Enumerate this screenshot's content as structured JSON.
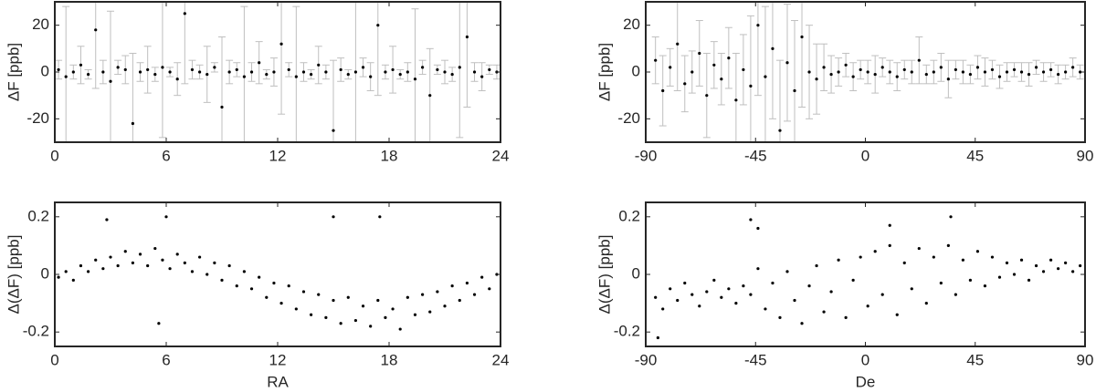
{
  "chart_data": [
    {
      "type": "scatter",
      "ylabel": "ΔF [ppb]",
      "color": "#000000",
      "error_color": "#bfbfbf",
      "xlim": [
        0,
        24
      ],
      "xticks": [
        0,
        6,
        12,
        18,
        24
      ],
      "ylim": [
        -30,
        30
      ],
      "yticks": [
        -20,
        0,
        20
      ],
      "x": [
        0.2,
        0.6,
        1.0,
        1.4,
        1.8,
        2.2,
        2.6,
        3.0,
        3.4,
        3.8,
        4.2,
        4.6,
        5.0,
        5.4,
        5.8,
        6.2,
        6.6,
        7.0,
        7.4,
        7.8,
        8.2,
        8.6,
        9.0,
        9.4,
        9.8,
        10.2,
        10.6,
        11.0,
        11.4,
        11.8,
        12.2,
        12.6,
        13.0,
        13.4,
        13.8,
        14.2,
        14.6,
        15.0,
        15.4,
        15.8,
        16.2,
        16.6,
        17.0,
        17.4,
        17.8,
        18.2,
        18.6,
        19.0,
        19.4,
        19.8,
        20.2,
        20.6,
        21.0,
        21.4,
        21.8,
        22.2,
        22.6,
        23.0,
        23.4,
        23.8
      ],
      "values": [
        1,
        -2,
        0,
        3,
        -1,
        18,
        0,
        -4,
        2,
        1,
        -22,
        0,
        1,
        -1,
        2,
        0,
        -3,
        25,
        1,
        0,
        -1,
        2,
        -15,
        0,
        1,
        -2,
        0,
        4,
        -1,
        0,
        12,
        1,
        -2,
        0,
        -1,
        3,
        0,
        -25,
        1,
        -1,
        0,
        2,
        -2,
        20,
        0,
        1,
        -1,
        0,
        -3,
        2,
        -10,
        1,
        0,
        -1,
        2,
        15,
        0,
        -2,
        1,
        0
      ],
      "errors": [
        4,
        30,
        3,
        8,
        2,
        25,
        5,
        30,
        3,
        6,
        30,
        4,
        10,
        3,
        30,
        2,
        7,
        30,
        4,
        3,
        12,
        2,
        30,
        5,
        3,
        30,
        4,
        9,
        2,
        6,
        30,
        3,
        30,
        4,
        2,
        8,
        3,
        30,
        5,
        2,
        30,
        4,
        6,
        30,
        3,
        10,
        2,
        4,
        30,
        3,
        20,
        2,
        5,
        3,
        30,
        30,
        4,
        6,
        2,
        3
      ]
    },
    {
      "type": "scatter",
      "xlabel": "RA",
      "ylabel": "Δ(ΔF) [ppb]",
      "color": "#000000",
      "xlim": [
        0,
        24
      ],
      "xticks": [
        0,
        6,
        12,
        18,
        24
      ],
      "ylim": [
        -0.25,
        0.25
      ],
      "yticks": [
        -0.2,
        0,
        0.2
      ],
      "x": [
        0.2,
        0.6,
        1.0,
        1.4,
        1.8,
        2.2,
        2.6,
        3.0,
        3.4,
        3.8,
        4.2,
        4.6,
        5.0,
        5.4,
        5.8,
        6.2,
        6.6,
        7.0,
        7.4,
        7.8,
        8.2,
        8.6,
        9.0,
        9.4,
        9.8,
        10.2,
        10.6,
        11.0,
        11.4,
        11.8,
        12.2,
        12.6,
        13.0,
        13.4,
        13.8,
        14.2,
        14.6,
        15.0,
        15.4,
        15.8,
        16.2,
        16.6,
        17.0,
        17.4,
        17.8,
        18.2,
        18.6,
        19.0,
        19.4,
        19.8,
        20.2,
        20.6,
        21.0,
        21.4,
        21.8,
        22.2,
        22.6,
        23.0,
        23.4,
        23.8,
        2.8,
        6.0,
        15.0,
        17.5,
        5.6
      ],
      "values": [
        -0.01,
        0.01,
        -0.02,
        0.03,
        0.01,
        0.05,
        0.02,
        0.06,
        0.03,
        0.08,
        0.04,
        0.07,
        0.03,
        0.09,
        0.05,
        0.02,
        0.07,
        0.04,
        0.01,
        0.06,
        0.0,
        0.04,
        -0.02,
        0.03,
        -0.04,
        0.01,
        -0.05,
        -0.01,
        -0.08,
        -0.03,
        -0.1,
        -0.04,
        -0.12,
        -0.06,
        -0.14,
        -0.07,
        -0.15,
        -0.09,
        -0.17,
        -0.08,
        -0.16,
        -0.11,
        -0.18,
        -0.09,
        -0.15,
        -0.12,
        -0.19,
        -0.08,
        -0.14,
        -0.07,
        -0.13,
        -0.06,
        -0.11,
        -0.04,
        -0.09,
        -0.03,
        -0.07,
        -0.01,
        -0.05,
        0.0,
        0.19,
        0.2,
        0.2,
        0.2,
        -0.17
      ]
    },
    {
      "type": "scatter",
      "ylabel": "ΔF [ppb]",
      "color": "#000000",
      "error_color": "#bfbfbf",
      "xlim": [
        -90,
        90
      ],
      "xticks": [
        -90,
        -45,
        0,
        45,
        90
      ],
      "ylim": [
        -30,
        30
      ],
      "yticks": [
        -20,
        0,
        20
      ],
      "x": [
        -86,
        -83,
        -80,
        -77,
        -74,
        -71,
        -68,
        -65,
        -62,
        -59,
        -56,
        -53,
        -50,
        -47,
        -44,
        -41,
        -38,
        -35,
        -32,
        -29,
        -26,
        -23,
        -20,
        -17,
        -14,
        -11,
        -8,
        -5,
        -2,
        1,
        4,
        7,
        10,
        13,
        16,
        19,
        22,
        25,
        28,
        31,
        34,
        37,
        40,
        43,
        46,
        49,
        52,
        55,
        58,
        61,
        64,
        67,
        70,
        73,
        76,
        79,
        82,
        85,
        88
      ],
      "values": [
        5,
        -8,
        2,
        12,
        -5,
        0,
        8,
        -10,
        3,
        -3,
        6,
        -12,
        1,
        -6,
        20,
        -2,
        10,
        -25,
        4,
        -8,
        15,
        0,
        -3,
        2,
        -1,
        0,
        3,
        -2,
        1,
        0,
        -1,
        2,
        0,
        -2,
        1,
        0,
        5,
        -1,
        0,
        2,
        -3,
        1,
        0,
        -1,
        2,
        0,
        1,
        -2,
        0,
        1,
        0,
        -1,
        2,
        0,
        1,
        -1,
        0,
        2,
        0
      ],
      "errors": [
        10,
        15,
        8,
        20,
        12,
        9,
        14,
        18,
        10,
        11,
        13,
        20,
        15,
        30,
        30,
        30,
        30,
        30,
        25,
        30,
        30,
        20,
        15,
        10,
        8,
        6,
        5,
        6,
        4,
        5,
        8,
        4,
        5,
        6,
        4,
        5,
        10,
        4,
        5,
        6,
        8,
        4,
        5,
        4,
        5,
        6,
        4,
        5,
        4,
        3,
        4,
        5,
        3,
        4,
        3,
        4,
        3,
        4,
        3
      ]
    },
    {
      "type": "scatter",
      "xlabel": "De",
      "ylabel": "Δ(ΔF) [ppb]",
      "color": "#000000",
      "xlim": [
        -90,
        90
      ],
      "xticks": [
        -90,
        -45,
        0,
        45,
        90
      ],
      "ylim": [
        -0.25,
        0.25
      ],
      "yticks": [
        -0.2,
        0,
        0.2
      ],
      "x": [
        -86,
        -83,
        -80,
        -77,
        -74,
        -71,
        -68,
        -65,
        -62,
        -59,
        -56,
        -53,
        -50,
        -47,
        -44,
        -41,
        -38,
        -35,
        -32,
        -29,
        -26,
        -23,
        -20,
        -17,
        -14,
        -11,
        -8,
        -5,
        -2,
        1,
        4,
        7,
        10,
        13,
        16,
        19,
        22,
        25,
        28,
        31,
        34,
        37,
        40,
        43,
        46,
        49,
        52,
        55,
        58,
        61,
        64,
        67,
        70,
        73,
        76,
        79,
        82,
        85,
        88,
        -47,
        -44,
        10,
        35,
        -85
      ],
      "values": [
        -0.08,
        -0.12,
        -0.05,
        -0.09,
        -0.03,
        -0.07,
        -0.11,
        -0.06,
        -0.02,
        -0.08,
        -0.05,
        -0.1,
        -0.04,
        -0.07,
        0.02,
        -0.12,
        -0.03,
        -0.15,
        0.01,
        -0.09,
        -0.17,
        -0.04,
        0.03,
        -0.13,
        -0.06,
        0.05,
        -0.15,
        -0.02,
        0.06,
        -0.11,
        0.08,
        -0.07,
        0.1,
        -0.14,
        0.04,
        -0.05,
        0.09,
        -0.1,
        0.06,
        -0.03,
        0.1,
        -0.07,
        0.05,
        -0.02,
        0.08,
        -0.04,
        0.06,
        -0.01,
        0.04,
        0.0,
        0.05,
        -0.02,
        0.03,
        0.01,
        0.05,
        0.02,
        0.04,
        0.01,
        0.03,
        0.19,
        0.16,
        0.17,
        0.2,
        -0.22
      ]
    }
  ]
}
